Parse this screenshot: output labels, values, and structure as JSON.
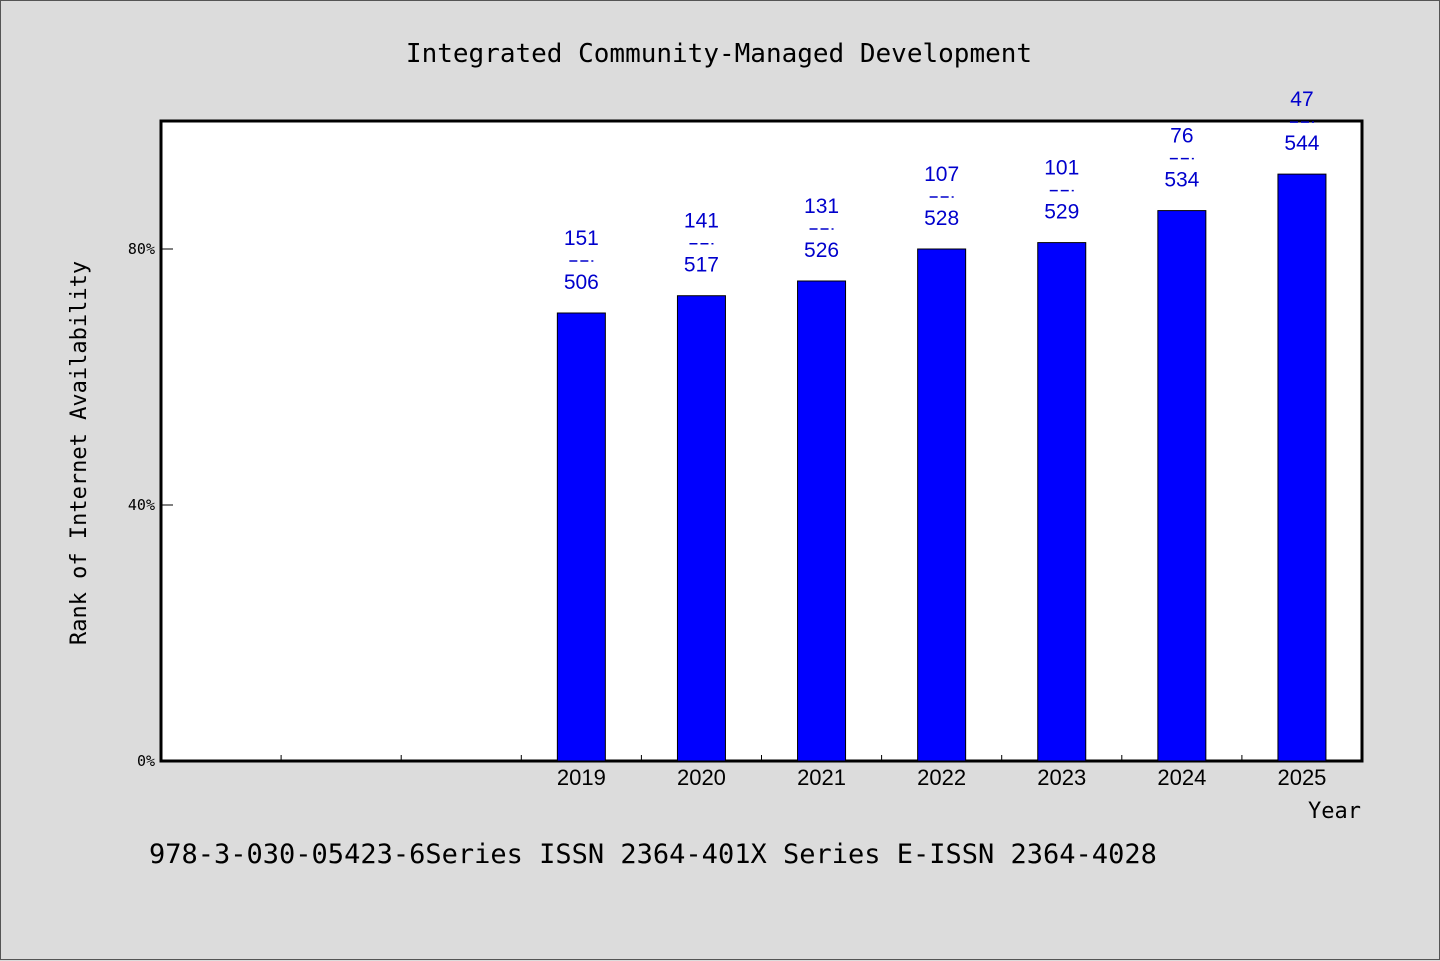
{
  "chart_data": {
    "type": "bar",
    "title": "Integrated Community-Managed Development",
    "xlabel": "Year",
    "ylabel": "Rank of Internet Availability",
    "categories": [
      "",
      "",
      "",
      "2019",
      "2020",
      "2021",
      "2022",
      "2023",
      "2024",
      "2025"
    ],
    "values": [
      null,
      null,
      null,
      70,
      72.7,
      75,
      80,
      81,
      86,
      91.7
    ],
    "data_labels": [
      null,
      null,
      null,
      {
        "top": "151",
        "bottom": "506"
      },
      {
        "top": "141",
        "bottom": "517"
      },
      {
        "top": "131",
        "bottom": "526"
      },
      {
        "top": "107",
        "bottom": "528"
      },
      {
        "top": "101",
        "bottom": "529"
      },
      {
        "top": "76",
        "bottom": "534"
      },
      {
        "top": "47",
        "bottom": "544"
      }
    ],
    "ylim": [
      0,
      100
    ],
    "yticks": [
      0,
      40,
      80
    ],
    "ytick_labels": [
      "0%",
      "40%",
      "80%"
    ],
    "bar_color": "#0000ff",
    "label_color": "#0000cc",
    "grid": false,
    "legend": "none"
  },
  "footer": {
    "text": "978-3-030-05423-6Series ISSN 2364-401X Series E-ISSN 2364-4028"
  }
}
